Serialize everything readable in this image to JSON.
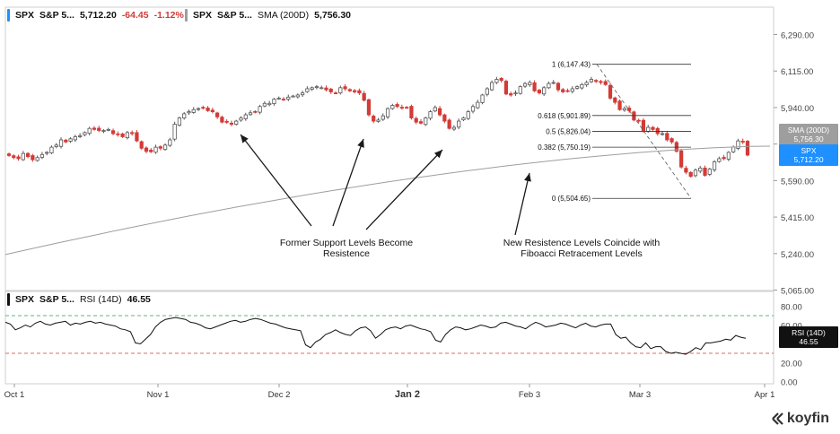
{
  "price_legend": {
    "ticker": "SPX",
    "name": "S&P 5...",
    "last": "5,712.20",
    "change": "-64.45",
    "change_pct": "-1.12%",
    "sma_ticker": "SPX",
    "sma_name": "S&P 5...",
    "sma_label": "SMA (200D)",
    "sma_value": "5,756.30",
    "accent_color": "#1e90ff",
    "sma_color": "#9e9e9e"
  },
  "rsi_legend": {
    "ticker": "SPX",
    "name": "S&P 5...",
    "label": "RSI (14D)",
    "value": "46.55"
  },
  "badges": {
    "sma_title": "SMA (200D)",
    "sma_value": "5,756.30",
    "spx_title": "SPX",
    "spx_value": "5,712.20",
    "rsi_title": "RSI (14D)",
    "rsi_value": "46.55"
  },
  "annotations": {
    "left": "Former Support Levels Become Resistence",
    "right": "New Resistence Levels Coincide with Fiboacci Retracement Levels"
  },
  "logo": "koyfin",
  "chart_data": {
    "type": "candlestick",
    "price_axis": {
      "ylim": [
        5065,
        6290
      ],
      "ticks": [
        "6,290.00",
        "6,115.00",
        "5,940.00",
        "5,765.00",
        "5,590.00",
        "5,415.00",
        "5,240.00",
        "5,065.00"
      ]
    },
    "rsi_axis": {
      "ylim": [
        0,
        80
      ],
      "ticks": [
        "80.00",
        "60.00",
        "40.00",
        "20.00",
        "0.00"
      ],
      "overbought": 70,
      "oversold": 30
    },
    "x_ticks": [
      "Oct 1",
      "Nov 1",
      "Dec 2",
      "Jan 2",
      "Feb 3",
      "Mar 3",
      "Apr 1"
    ],
    "fibonacci": [
      {
        "label": "1 (6,147.43)",
        "value": 6147.43
      },
      {
        "label": "0.618 (5,901.89)",
        "value": 5901.89
      },
      {
        "label": "0.5 (5,826.04)",
        "value": 5826.04
      },
      {
        "label": "0.382 (5,750.19)",
        "value": 5750.19
      },
      {
        "label": "0 (5,504.65)",
        "value": 5504.65
      }
    ],
    "close": [
      5710,
      5700,
      5695,
      5720,
      5705,
      5690,
      5700,
      5715,
      5725,
      5750,
      5760,
      5785,
      5775,
      5790,
      5800,
      5805,
      5820,
      5840,
      5835,
      5830,
      5830,
      5835,
      5815,
      5810,
      5800,
      5820,
      5815,
      5780,
      5745,
      5730,
      5728,
      5750,
      5745,
      5760,
      5785,
      5860,
      5890,
      5910,
      5920,
      5930,
      5935,
      5940,
      5925,
      5920,
      5895,
      5870,
      5870,
      5860,
      5875,
      5890,
      5905,
      5915,
      5920,
      5945,
      5960,
      5960,
      5980,
      5985,
      5980,
      5990,
      5995,
      6000,
      6010,
      6030,
      6035,
      6040,
      6035,
      6025,
      6015,
      6010,
      6035,
      6030,
      6020,
      6015,
      6010,
      5975,
      5905,
      5875,
      5880,
      5900,
      5935,
      5950,
      5945,
      5940,
      5940,
      5890,
      5870,
      5865,
      5890,
      5920,
      5940,
      5905,
      5875,
      5840,
      5845,
      5875,
      5890,
      5920,
      5945,
      5965,
      6000,
      6030,
      6060,
      6075,
      6070,
      6005,
      6000,
      6010,
      6040,
      6055,
      6060,
      6020,
      6010,
      6035,
      6055,
      6060,
      6025,
      6015,
      6020,
      6030,
      6040,
      6050,
      6060,
      6075,
      6065,
      6060,
      6050,
      5985,
      5965,
      5930,
      5935,
      5925,
      5880,
      5875,
      5830,
      5845,
      5835,
      5815,
      5815,
      5785,
      5775,
      5730,
      5655,
      5630,
      5610,
      5640,
      5650,
      5615,
      5645,
      5680,
      5695,
      5695,
      5725,
      5750,
      5780,
      5775,
      5712
    ],
    "sma_200d": [
      5235,
      5755
    ],
    "rsi": [
      63,
      61,
      55,
      57,
      60,
      58,
      62,
      64,
      61,
      60,
      62,
      63,
      64,
      60,
      62,
      61,
      63,
      64,
      62,
      63,
      61,
      60,
      59,
      56,
      55,
      53,
      41,
      40,
      45,
      50,
      58,
      63,
      66,
      67,
      68,
      67,
      66,
      63,
      62,
      60,
      57,
      56,
      58,
      60,
      62,
      64,
      65,
      63,
      64,
      66,
      67,
      66,
      64,
      62,
      61,
      59,
      57,
      56,
      55,
      54,
      39,
      36,
      42,
      45,
      50,
      52,
      55,
      52,
      50,
      49,
      54,
      57,
      58,
      54,
      46,
      50,
      55,
      57,
      58,
      56,
      59,
      60,
      58,
      56,
      55,
      53,
      44,
      42,
      50,
      55,
      58,
      57,
      55,
      56,
      58,
      60,
      59,
      57,
      58,
      62,
      63,
      61,
      59,
      58,
      56,
      60,
      63,
      61,
      58,
      59,
      60,
      62,
      61,
      59,
      57,
      60,
      62,
      59,
      58,
      60,
      61,
      61,
      50,
      46,
      47,
      41,
      37,
      36,
      41,
      35,
      37,
      37,
      32,
      30,
      31,
      30,
      29,
      32,
      36,
      34,
      41,
      41,
      42,
      43,
      45,
      44,
      49,
      47,
      46
    ]
  }
}
